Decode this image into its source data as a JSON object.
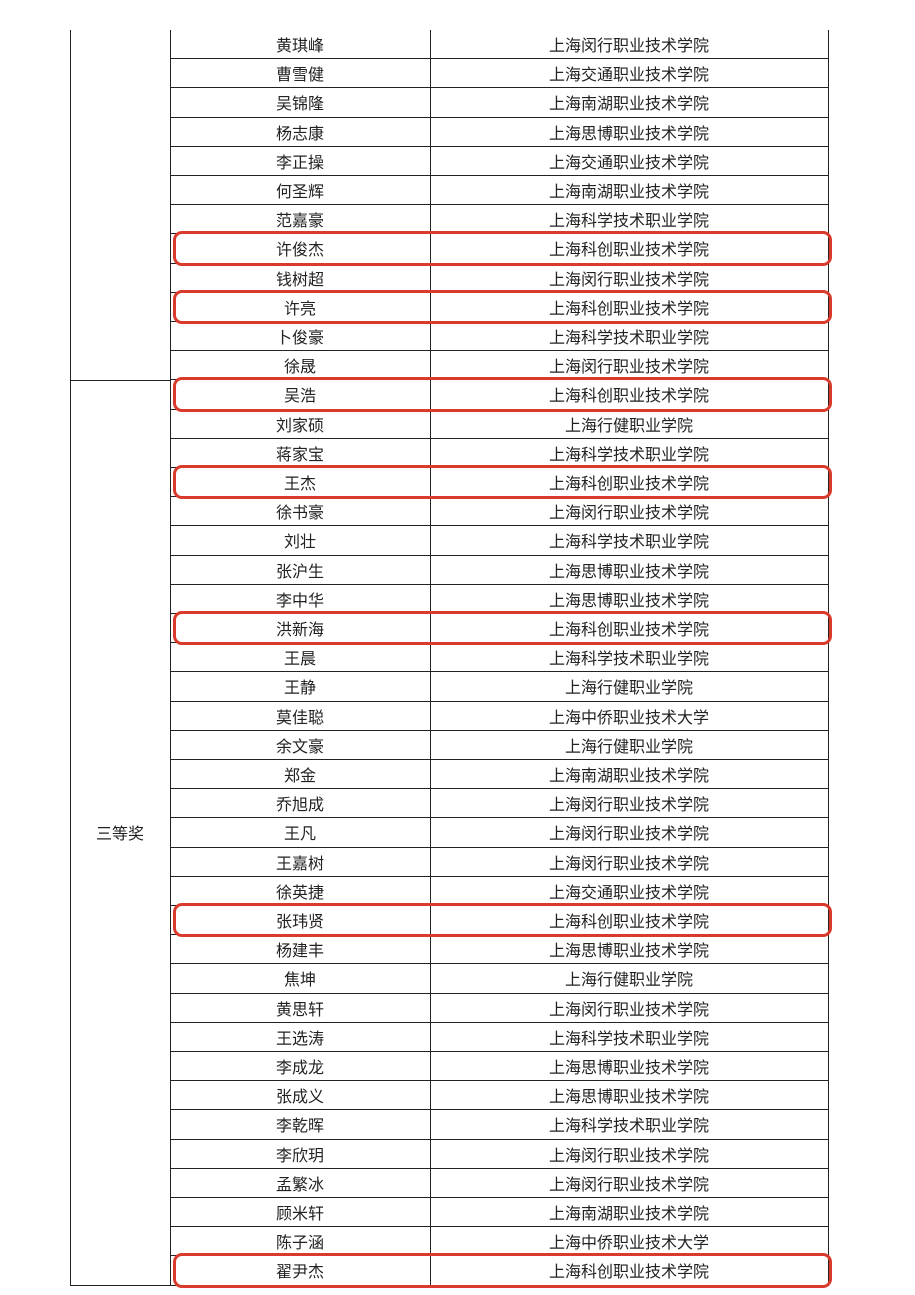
{
  "award_label": "三等奖",
  "highlight_color": "#d93a2b",
  "rows": [
    {
      "name": "黄琪峰",
      "school": "上海闵行职业技术学院",
      "highlighted": false
    },
    {
      "name": "曹雪健",
      "school": "上海交通职业技术学院",
      "highlighted": false
    },
    {
      "name": "吴锦隆",
      "school": "上海南湖职业技术学院",
      "highlighted": false
    },
    {
      "name": "杨志康",
      "school": "上海思博职业技术学院",
      "highlighted": false
    },
    {
      "name": "李正操",
      "school": "上海交通职业技术学院",
      "highlighted": false
    },
    {
      "name": "何圣辉",
      "school": "上海南湖职业技术学院",
      "highlighted": false
    },
    {
      "name": "范嘉豪",
      "school": "上海科学技术职业学院",
      "highlighted": false
    },
    {
      "name": "许俊杰",
      "school": "上海科创职业技术学院",
      "highlighted": true
    },
    {
      "name": "钱树超",
      "school": "上海闵行职业技术学院",
      "highlighted": false
    },
    {
      "name": "许亮",
      "school": "上海科创职业技术学院",
      "highlighted": true
    },
    {
      "name": "卜俊豪",
      "school": "上海科学技术职业学院",
      "highlighted": false
    },
    {
      "name": "徐晟",
      "school": "上海闵行职业技术学院",
      "highlighted": false
    },
    {
      "name": "吴浩",
      "school": "上海科创职业技术学院",
      "highlighted": true
    },
    {
      "name": "刘家硕",
      "school": "上海行健职业学院",
      "highlighted": false
    },
    {
      "name": "蒋家宝",
      "school": "上海科学技术职业学院",
      "highlighted": false
    },
    {
      "name": "王杰",
      "school": "上海科创职业技术学院",
      "highlighted": true
    },
    {
      "name": "徐书豪",
      "school": "上海闵行职业技术学院",
      "highlighted": false
    },
    {
      "name": "刘壮",
      "school": "上海科学技术职业学院",
      "highlighted": false
    },
    {
      "name": "张沪生",
      "school": "上海思博职业技术学院",
      "highlighted": false
    },
    {
      "name": "李中华",
      "school": "上海思博职业技术学院",
      "highlighted": false
    },
    {
      "name": "洪新海",
      "school": "上海科创职业技术学院",
      "highlighted": true
    },
    {
      "name": "王晨",
      "school": "上海科学技术职业学院",
      "highlighted": false
    },
    {
      "name": "王静",
      "school": "上海行健职业学院",
      "highlighted": false
    },
    {
      "name": "莫佳聪",
      "school": "上海中侨职业技术大学",
      "highlighted": false
    },
    {
      "name": "余文豪",
      "school": "上海行健职业学院",
      "highlighted": false
    },
    {
      "name": "郑金",
      "school": "上海南湖职业技术学院",
      "highlighted": false
    },
    {
      "name": "乔旭成",
      "school": "上海闵行职业技术学院",
      "highlighted": false
    },
    {
      "name": "王凡",
      "school": "上海闵行职业技术学院",
      "highlighted": false
    },
    {
      "name": "王嘉树",
      "school": "上海闵行职业技术学院",
      "highlighted": false
    },
    {
      "name": "徐英捷",
      "school": "上海交通职业技术学院",
      "highlighted": false
    },
    {
      "name": "张玮贤",
      "school": "上海科创职业技术学院",
      "highlighted": true
    },
    {
      "name": "杨建丰",
      "school": "上海思博职业技术学院",
      "highlighted": false
    },
    {
      "name": "焦坤",
      "school": "上海行健职业学院",
      "highlighted": false
    },
    {
      "name": "黄思轩",
      "school": "上海闵行职业技术学院",
      "highlighted": false
    },
    {
      "name": "王选涛",
      "school": "上海科学技术职业学院",
      "highlighted": false
    },
    {
      "name": "李成龙",
      "school": "上海思博职业技术学院",
      "highlighted": false
    },
    {
      "name": "张成义",
      "school": "上海思博职业技术学院",
      "highlighted": false
    },
    {
      "name": "李乾晖",
      "school": "上海科学技术职业学院",
      "highlighted": false
    },
    {
      "name": "李欣玥",
      "school": "上海闵行职业技术学院",
      "highlighted": false
    },
    {
      "name": "孟繁冰",
      "school": "上海闵行职业技术学院",
      "highlighted": false
    },
    {
      "name": "顾米轩",
      "school": "上海南湖职业技术学院",
      "highlighted": false
    },
    {
      "name": "陈子涵",
      "school": "上海中侨职业技术大学",
      "highlighted": false
    },
    {
      "name": "翟尹杰",
      "school": "上海科创职业技术学院",
      "highlighted": true
    }
  ]
}
